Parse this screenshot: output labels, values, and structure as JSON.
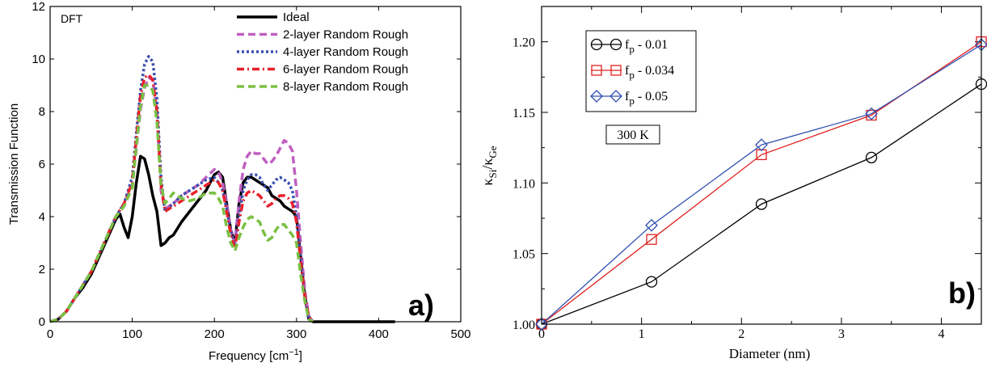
{
  "chart_data": [
    {
      "type": "line",
      "panel_label": "a)",
      "annotation": "DFT",
      "xlabel": "Frequency [cm",
      "xlabel_sup": "−1",
      "xlabel_end": "]",
      "ylabel": "Transmission Function",
      "xlim": [
        0,
        500
      ],
      "ylim": [
        0,
        12
      ],
      "xticks": [
        0,
        100,
        200,
        300,
        400,
        500
      ],
      "yticks": [
        0,
        2,
        4,
        6,
        8,
        10,
        12
      ],
      "legend_position": "top-right",
      "series": [
        {
          "name": "Ideal",
          "color": "#000000",
          "style": "solid",
          "x": [
            0,
            10,
            20,
            30,
            40,
            50,
            60,
            70,
            80,
            85,
            90,
            95,
            100,
            105,
            110,
            115,
            120,
            125,
            130,
            135,
            140,
            145,
            150,
            160,
            170,
            180,
            190,
            200,
            205,
            210,
            215,
            220,
            225,
            230,
            235,
            240,
            245,
            250,
            255,
            260,
            265,
            270,
            275,
            280,
            285,
            290,
            295,
            300,
            305,
            310,
            315,
            320,
            340,
            360,
            380,
            400,
            420
          ],
          "y": [
            0,
            0.1,
            0.4,
            0.9,
            1.3,
            1.8,
            2.5,
            3.2,
            3.9,
            4.1,
            3.6,
            3.2,
            4.0,
            5.3,
            6.3,
            6.2,
            5.6,
            4.8,
            4.2,
            2.9,
            3.0,
            3.2,
            3.3,
            3.8,
            4.2,
            4.6,
            5.0,
            5.6,
            5.7,
            5.5,
            4.5,
            3.5,
            3.0,
            4.5,
            5.3,
            5.5,
            5.5,
            5.4,
            5.3,
            5.2,
            5.1,
            4.8,
            4.7,
            4.6,
            4.4,
            4.3,
            4.2,
            4.0,
            2.5,
            1.0,
            0.1,
            0,
            0,
            0,
            0,
            0,
            0
          ]
        },
        {
          "name": "2-layer Random Rough",
          "color": "#c060c0",
          "style": "dash",
          "x": [
            0,
            10,
            20,
            30,
            40,
            50,
            60,
            70,
            80,
            90,
            100,
            105,
            110,
            115,
            120,
            125,
            130,
            135,
            140,
            150,
            160,
            170,
            180,
            190,
            200,
            205,
            210,
            215,
            220,
            225,
            230,
            235,
            240,
            245,
            250,
            255,
            260,
            265,
            270,
            275,
            280,
            285,
            290,
            295,
            300,
            305,
            310,
            315,
            320
          ],
          "y": [
            0,
            0.1,
            0.4,
            0.9,
            1.4,
            1.9,
            2.6,
            3.3,
            4.0,
            4.4,
            5.2,
            6.6,
            8.1,
            8.9,
            9.3,
            9.2,
            8.0,
            5.0,
            4.3,
            4.5,
            4.8,
            5.0,
            5.2,
            5.5,
            5.8,
            5.7,
            5.3,
            4.5,
            3.5,
            3.0,
            4.6,
            5.8,
            6.3,
            6.5,
            6.4,
            6.4,
            6.2,
            6.0,
            6.1,
            6.3,
            6.6,
            6.9,
            6.8,
            6.5,
            5.0,
            3.0,
            1.2,
            0.2,
            0
          ]
        },
        {
          "name": "4-layer Random Rough",
          "color": "#3a4fb0",
          "style": "dot",
          "x": [
            0,
            10,
            20,
            30,
            40,
            50,
            60,
            70,
            80,
            90,
            100,
            105,
            110,
            115,
            120,
            125,
            130,
            135,
            140,
            150,
            160,
            170,
            180,
            190,
            200,
            205,
            210,
            215,
            220,
            225,
            230,
            235,
            240,
            245,
            250,
            255,
            260,
            265,
            270,
            275,
            280,
            285,
            290,
            295,
            300,
            305,
            310,
            315,
            320
          ],
          "y": [
            0,
            0.1,
            0.4,
            0.9,
            1.4,
            1.9,
            2.6,
            3.3,
            4.0,
            4.5,
            5.5,
            7.2,
            8.8,
            9.8,
            10.1,
            9.9,
            8.5,
            5.5,
            4.2,
            4.5,
            4.8,
            5.0,
            5.2,
            5.4,
            5.5,
            5.3,
            5.0,
            4.3,
            3.5,
            2.9,
            4.0,
            5.0,
            5.4,
            5.6,
            5.6,
            5.5,
            5.2,
            5.0,
            5.2,
            5.4,
            5.5,
            5.4,
            5.3,
            5.0,
            4.0,
            2.5,
            1.0,
            0.2,
            0
          ]
        },
        {
          "name": "6-layer Random Rough",
          "color": "#e8202a",
          "style": "dashdot",
          "x": [
            0,
            10,
            20,
            30,
            40,
            50,
            60,
            70,
            80,
            90,
            100,
            105,
            110,
            115,
            120,
            125,
            130,
            135,
            140,
            150,
            160,
            170,
            180,
            190,
            200,
            205,
            210,
            215,
            220,
            225,
            230,
            235,
            240,
            245,
            250,
            255,
            260,
            265,
            270,
            275,
            280,
            285,
            290,
            295,
            300,
            305,
            310,
            315,
            320
          ],
          "y": [
            0,
            0.1,
            0.4,
            0.9,
            1.4,
            1.9,
            2.6,
            3.3,
            4.0,
            4.5,
            5.3,
            7.0,
            8.6,
            9.3,
            9.4,
            9.2,
            8.0,
            5.2,
            4.2,
            4.4,
            4.6,
            4.8,
            5.0,
            5.2,
            5.4,
            5.3,
            5.0,
            4.2,
            3.3,
            2.8,
            3.8,
            4.6,
            4.9,
            5.0,
            4.9,
            4.8,
            4.6,
            4.4,
            4.5,
            4.7,
            4.8,
            4.8,
            4.7,
            4.5,
            3.8,
            2.3,
            1.0,
            0.2,
            0
          ]
        },
        {
          "name": "8-layer Random Rough",
          "color": "#7ac043",
          "style": "dash",
          "x": [
            0,
            10,
            20,
            30,
            40,
            50,
            60,
            70,
            80,
            90,
            100,
            105,
            110,
            115,
            120,
            125,
            130,
            135,
            140,
            150,
            160,
            170,
            180,
            190,
            200,
            205,
            210,
            215,
            220,
            225,
            230,
            235,
            240,
            245,
            250,
            255,
            260,
            265,
            270,
            275,
            280,
            285,
            290,
            295,
            300,
            305,
            310,
            315,
            320
          ],
          "y": [
            0,
            0.1,
            0.4,
            0.9,
            1.4,
            1.9,
            2.6,
            3.3,
            4.0,
            4.4,
            5.1,
            6.7,
            8.2,
            9.0,
            9.0,
            8.8,
            7.6,
            5.2,
            4.5,
            4.9,
            4.7,
            4.6,
            4.7,
            4.9,
            4.9,
            4.7,
            4.4,
            3.6,
            3.0,
            2.7,
            3.2,
            3.6,
            3.9,
            4.0,
            3.9,
            3.8,
            3.4,
            3.1,
            3.2,
            3.5,
            3.7,
            3.7,
            3.5,
            3.3,
            3.0,
            1.8,
            0.8,
            0.1,
            0
          ]
        }
      ]
    },
    {
      "type": "line",
      "panel_label": "b)",
      "annotation": "300 K",
      "xlabel": "Diameter (nm)",
      "ylabel_main": "κ",
      "ylabel_sub1": "Si",
      "ylabel_sep": "/κ",
      "ylabel_sub2": "Ge",
      "xlim": [
        0,
        4.4
      ],
      "ylim": [
        1.0,
        1.225
      ],
      "xticks": [
        0,
        1,
        2,
        3,
        4
      ],
      "yticks": [
        1.0,
        1.05,
        1.1,
        1.15,
        1.2
      ],
      "ytick_labels": [
        "1.00",
        "1.05",
        "1.10",
        "1.15",
        "1.20"
      ],
      "legend_position": "top-left",
      "series": [
        {
          "name": "f",
          "name_sub": "p",
          "name_rest": " - 0.01",
          "color": "#000000",
          "marker": "circle",
          "x": [
            0,
            1.1,
            2.2,
            3.3,
            4.4
          ],
          "y": [
            1.0,
            1.03,
            1.085,
            1.118,
            1.17
          ]
        },
        {
          "name": "f",
          "name_sub": "p",
          "name_rest": " - 0.034",
          "color": "#e02020",
          "marker": "square",
          "x": [
            0,
            1.1,
            2.2,
            3.3,
            4.4
          ],
          "y": [
            1.0,
            1.06,
            1.12,
            1.148,
            1.2
          ]
        },
        {
          "name": "f",
          "name_sub": "p",
          "name_rest": " - 0.05",
          "color": "#3050b0",
          "marker": "diamond",
          "x": [
            0,
            1.1,
            2.2,
            3.3,
            4.4
          ],
          "y": [
            1.0,
            1.07,
            1.127,
            1.149,
            1.198
          ]
        }
      ]
    }
  ]
}
